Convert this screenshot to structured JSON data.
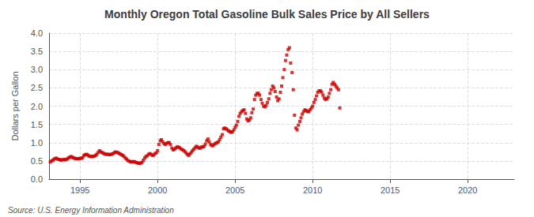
{
  "chart_data": {
    "type": "scatter",
    "title": "Monthly Oregon Total Gasoline Bulk Sales Price by All Sellers",
    "ylabel": "Dollars per Gallon",
    "annotations": [
      "Source: U.S. Energy Information Administration"
    ],
    "color": "#cc0000",
    "marker": "square",
    "grid": true,
    "xlim": [
      1993.0,
      2023.0
    ],
    "ylim": [
      0.0,
      4.0
    ],
    "xticks": [
      1995,
      2000,
      2005,
      2010,
      2015,
      2020
    ],
    "yticks": [
      {
        "value": 0.0,
        "label": "0.0"
      },
      0.5,
      {
        "value": 1.0,
        "label": "1.0"
      },
      1.5,
      {
        "value": 2.0,
        "label": "2.0"
      },
      2.5,
      {
        "value": 3.0,
        "label": "3.0"
      },
      3.5,
      {
        "value": 4.0,
        "label": "4.0"
      }
    ],
    "x": [
      1993.08,
      1993.17,
      1993.25,
      1993.33,
      1993.42,
      1993.5,
      1993.58,
      1993.67,
      1993.75,
      1993.83,
      1993.92,
      1994.0,
      1994.08,
      1994.17,
      1994.25,
      1994.33,
      1994.42,
      1994.5,
      1994.58,
      1994.67,
      1994.75,
      1994.83,
      1994.92,
      1995.0,
      1995.08,
      1995.17,
      1995.25,
      1995.33,
      1995.42,
      1995.5,
      1995.58,
      1995.67,
      1995.75,
      1995.83,
      1995.92,
      1996.0,
      1996.08,
      1996.17,
      1996.25,
      1996.33,
      1996.42,
      1996.5,
      1996.58,
      1996.67,
      1996.75,
      1996.83,
      1996.92,
      1997.0,
      1997.08,
      1997.17,
      1997.25,
      1997.33,
      1997.42,
      1997.5,
      1997.58,
      1997.67,
      1997.75,
      1997.83,
      1997.92,
      1998.0,
      1998.08,
      1998.17,
      1998.25,
      1998.33,
      1998.42,
      1998.5,
      1998.58,
      1998.67,
      1998.75,
      1998.83,
      1998.92,
      1999.0,
      1999.08,
      1999.17,
      1999.25,
      1999.33,
      1999.42,
      1999.5,
      1999.58,
      1999.67,
      1999.75,
      1999.83,
      1999.92,
      2000.0,
      2000.08,
      2000.17,
      2000.25,
      2000.33,
      2000.42,
      2000.5,
      2000.58,
      2000.67,
      2000.75,
      2000.83,
      2000.92,
      2001.0,
      2001.08,
      2001.17,
      2001.25,
      2001.33,
      2001.42,
      2001.5,
      2001.58,
      2001.67,
      2001.75,
      2001.83,
      2001.92,
      2002.0,
      2002.08,
      2002.17,
      2002.25,
      2002.33,
      2002.42,
      2002.5,
      2002.58,
      2002.67,
      2002.75,
      2002.83,
      2002.92,
      2003.0,
      2003.08,
      2003.17,
      2003.25,
      2003.33,
      2003.42,
      2003.5,
      2003.58,
      2003.67,
      2003.75,
      2003.83,
      2003.92,
      2004.0,
      2004.08,
      2004.17,
      2004.25,
      2004.33,
      2004.42,
      2004.5,
      2004.58,
      2004.67,
      2004.75,
      2004.83,
      2004.92,
      2005.0,
      2005.08,
      2005.17,
      2005.25,
      2005.33,
      2005.42,
      2005.5,
      2005.58,
      2005.67,
      2005.75,
      2005.83,
      2005.92,
      2006.0,
      2006.08,
      2006.17,
      2006.25,
      2006.33,
      2006.42,
      2006.5,
      2006.58,
      2006.67,
      2006.75,
      2006.83,
      2006.92,
      2007.0,
      2007.08,
      2007.17,
      2007.25,
      2007.33,
      2007.42,
      2007.5,
      2007.58,
      2007.67,
      2007.75,
      2007.83,
      2007.92,
      2008.0,
      2008.08,
      2008.17,
      2008.25,
      2008.33,
      2008.42,
      2008.5,
      2008.58,
      2008.67,
      2008.75,
      2008.83,
      2008.92,
      2009.0,
      2009.08,
      2009.17,
      2009.25,
      2009.33,
      2009.42,
      2009.5,
      2009.58,
      2009.67,
      2009.75,
      2009.83,
      2009.92,
      2010.0,
      2010.08,
      2010.17,
      2010.25,
      2010.33,
      2010.42,
      2010.5,
      2010.58,
      2010.67,
      2010.75,
      2010.83,
      2010.92,
      2011.0,
      2011.08,
      2011.17,
      2011.25,
      2011.33,
      2011.42,
      2011.5,
      2011.58,
      2011.67,
      2011.75
    ],
    "values": [
      0.47,
      0.5,
      0.52,
      0.55,
      0.57,
      0.57,
      0.54,
      0.54,
      0.52,
      0.53,
      0.53,
      0.54,
      0.53,
      0.55,
      0.58,
      0.6,
      0.62,
      0.6,
      0.58,
      0.57,
      0.56,
      0.56,
      0.56,
      0.57,
      0.57,
      0.59,
      0.65,
      0.67,
      0.68,
      0.66,
      0.63,
      0.62,
      0.62,
      0.62,
      0.63,
      0.65,
      0.68,
      0.73,
      0.78,
      0.75,
      0.73,
      0.71,
      0.69,
      0.68,
      0.68,
      0.68,
      0.67,
      0.68,
      0.69,
      0.71,
      0.74,
      0.74,
      0.73,
      0.71,
      0.69,
      0.67,
      0.65,
      0.62,
      0.58,
      0.55,
      0.51,
      0.49,
      0.48,
      0.47,
      0.48,
      0.48,
      0.46,
      0.45,
      0.44,
      0.43,
      0.44,
      0.46,
      0.52,
      0.58,
      0.62,
      0.64,
      0.68,
      0.7,
      0.68,
      0.65,
      0.66,
      0.7,
      0.72,
      0.78,
      0.95,
      1.05,
      1.08,
      1.02,
      0.97,
      0.95,
      0.98,
      1.0,
      1.0,
      0.95,
      0.85,
      0.8,
      0.82,
      0.85,
      0.88,
      0.88,
      0.86,
      0.83,
      0.81,
      0.79,
      0.76,
      0.72,
      0.68,
      0.65,
      0.69,
      0.73,
      0.78,
      0.82,
      0.86,
      0.9,
      0.88,
      0.85,
      0.85,
      0.88,
      0.88,
      0.9,
      0.96,
      1.05,
      1.1,
      1.02,
      0.95,
      0.92,
      0.92,
      0.96,
      0.98,
      1.0,
      1.02,
      1.08,
      1.15,
      1.22,
      1.38,
      1.4,
      1.38,
      1.35,
      1.32,
      1.3,
      1.28,
      1.3,
      1.35,
      1.42,
      1.48,
      1.58,
      1.72,
      1.8,
      1.85,
      1.88,
      1.9,
      1.8,
      1.65,
      1.6,
      1.62,
      1.68,
      1.82,
      1.92,
      2.18,
      2.3,
      2.35,
      2.35,
      2.3,
      2.18,
      2.08,
      2.0,
      1.98,
      2.02,
      2.1,
      2.2,
      2.35,
      2.45,
      2.55,
      2.5,
      2.4,
      2.25,
      2.15,
      2.2,
      2.38,
      2.55,
      2.78,
      3.0,
      3.25,
      3.4,
      3.55,
      3.6,
      3.18,
      2.92,
      2.45,
      1.75,
      1.4,
      1.35,
      1.48,
      1.58,
      1.68,
      1.78,
      1.85,
      1.9,
      1.88,
      1.85,
      1.85,
      1.9,
      1.95,
      2.0,
      2.1,
      2.18,
      2.28,
      2.38,
      2.42,
      2.42,
      2.38,
      2.3,
      2.22,
      2.18,
      2.2,
      2.25,
      2.35,
      2.45,
      2.6,
      2.65,
      2.6,
      2.55,
      2.5,
      2.45,
      1.95
    ]
  }
}
